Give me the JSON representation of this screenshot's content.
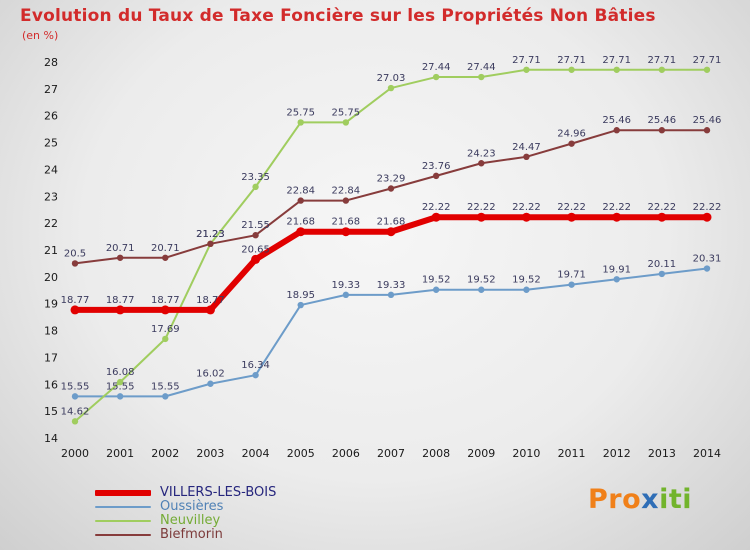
{
  "title_color": "#d22b2b",
  "chart_data": {
    "type": "line",
    "title": "Evolution du Taux de Taxe Foncière sur les Propriétés Non Bâties",
    "subtitle": "(en %)",
    "x": [
      2000,
      2001,
      2002,
      2003,
      2004,
      2005,
      2006,
      2007,
      2008,
      2009,
      2010,
      2011,
      2012,
      2013,
      2014
    ],
    "ylim": [
      14,
      28
    ],
    "ytick_step": 1,
    "grid": false,
    "legend_position": "bottom-left",
    "label_color": "#3b3b5e",
    "axis_color": "#1a1a1a",
    "series": [
      {
        "name": "VILLERS-LES-BOIS",
        "line_color": "#e10000",
        "text_color": "#26267d",
        "line_width": 6,
        "values": [
          18.77,
          18.77,
          18.77,
          18.77,
          20.65,
          21.68,
          21.68,
          21.68,
          22.22,
          22.22,
          22.22,
          22.22,
          22.22,
          22.22,
          22.22
        ]
      },
      {
        "name": "Oussières",
        "line_color": "#6d9cc9",
        "text_color": "#4f81b5",
        "line_width": 2,
        "values": [
          15.55,
          15.55,
          15.55,
          16.02,
          16.34,
          18.95,
          19.33,
          19.33,
          19.52,
          19.52,
          19.52,
          19.71,
          19.91,
          20.11,
          20.31
        ]
      },
      {
        "name": "Neuvilley",
        "line_color": "#a0cd5f",
        "text_color": "#74ab35",
        "line_width": 2,
        "values": [
          14.62,
          16.08,
          17.69,
          21.23,
          23.35,
          25.75,
          25.75,
          27.03,
          27.44,
          27.44,
          27.71,
          27.71,
          27.71,
          27.71,
          27.71
        ]
      },
      {
        "name": "Biefmorin",
        "line_color": "#873c3c",
        "text_color": "#7c3a3a",
        "line_width": 2,
        "values": [
          20.5,
          20.71,
          20.71,
          21.23,
          21.55,
          22.84,
          22.84,
          23.29,
          23.76,
          24.23,
          24.47,
          24.96,
          25.46,
          25.46,
          25.46
        ]
      }
    ]
  },
  "logo": {
    "text": "Proxiti",
    "parts": [
      {
        "text": "Pro",
        "color": "#f08019"
      },
      {
        "text": "x",
        "color": "#2f6eb6"
      },
      {
        "text": "iti",
        "color": "#72b42c"
      }
    ]
  }
}
